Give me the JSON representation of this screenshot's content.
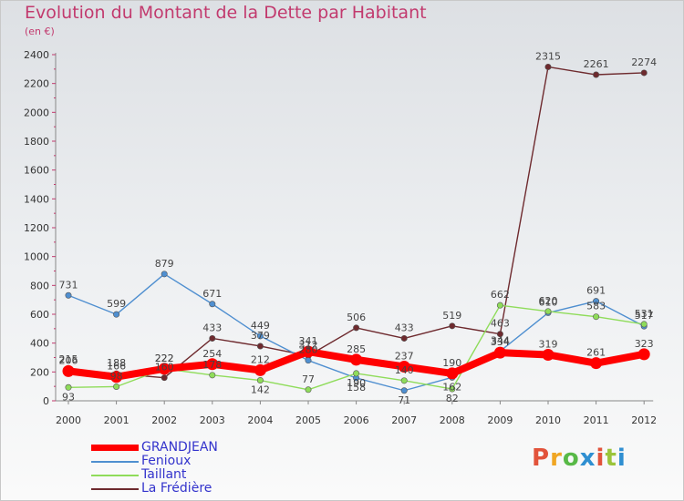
{
  "header": {
    "title": "Evolution du Montant de la Dette par Habitant",
    "subtitle": "(en €)"
  },
  "logo": {
    "text": "Proxiti",
    "colors": [
      "#e2533b",
      "#f0a623",
      "#58b947",
      "#2f8fd1",
      "#e2533b",
      "#9bc43a",
      "#2f8fd1"
    ]
  },
  "chart_data": {
    "type": "line",
    "x": [
      "2000",
      "2001",
      "2002",
      "2003",
      "2004",
      "2005",
      "2006",
      "2007",
      "2008",
      "2009",
      "2010",
      "2011",
      "2012"
    ],
    "ylim": [
      0,
      2400
    ],
    "yticks": [
      0,
      200,
      400,
      600,
      800,
      1000,
      1200,
      1400,
      1600,
      1800,
      2000,
      2200,
      2400
    ],
    "grid": false,
    "legend_position": "bottom-left",
    "series": [
      {
        "name": "GRANDJEAN",
        "color": "#ff0000",
        "values": [
          206,
          166,
          222,
          254,
          212,
          341,
          285,
          237,
          190,
          334,
          319,
          261,
          323
        ],
        "labels": [
          "206",
          "166",
          "222",
          "254",
          "212",
          "341",
          "285",
          "237",
          "190",
          "334",
          "319",
          "261",
          "323"
        ],
        "label_offsets": [
          -8,
          -8,
          -8,
          -8,
          -8,
          -8,
          -8,
          -8,
          -8,
          -8,
          -8,
          -8,
          -8
        ]
      },
      {
        "name": "Fenioux",
        "color": "#4f8fd0",
        "values": [
          731,
          599,
          879,
          671,
          449,
          280,
          158,
          71,
          162,
          344,
          610,
          691,
          517
        ],
        "labels": [
          "731",
          "599",
          "879",
          "671",
          "449",
          "280",
          "158",
          "71",
          "162",
          "344",
          "610",
          "691",
          "517"
        ],
        "label_offsets": [
          -8,
          -8,
          -8,
          -8,
          -8,
          -8,
          14,
          14,
          14,
          -8,
          -8,
          -8,
          -8
        ]
      },
      {
        "name": "Taillant",
        "color": "#8fdc5a",
        "values": [
          93,
          98,
          222,
          178,
          142,
          77,
          190,
          140,
          82,
          662,
          620,
          583,
          531
        ],
        "labels": [
          "93",
          "98",
          "222",
          "178",
          "142",
          "77",
          "190",
          "140",
          "82",
          "662",
          "620",
          "583",
          "531"
        ],
        "label_offsets": [
          14,
          -8,
          -8,
          -8,
          14,
          -8,
          14,
          -8,
          14,
          -8,
          -8,
          -8,
          -8
        ]
      },
      {
        "name": "La Frédière",
        "color": "#6e2a2e",
        "values": [
          215,
          188,
          160,
          433,
          379,
          312,
          506,
          433,
          519,
          463,
          2315,
          2261,
          2274
        ],
        "labels": [
          "215",
          "188",
          "160",
          "433",
          "379",
          "312",
          "506",
          "433",
          "519",
          "463",
          "2315",
          "2261",
          "2274"
        ],
        "label_offsets": [
          -8,
          -8,
          -8,
          -8,
          -8,
          -8,
          -8,
          -8,
          -8,
          -8,
          -8,
          -8,
          -8
        ]
      }
    ]
  }
}
